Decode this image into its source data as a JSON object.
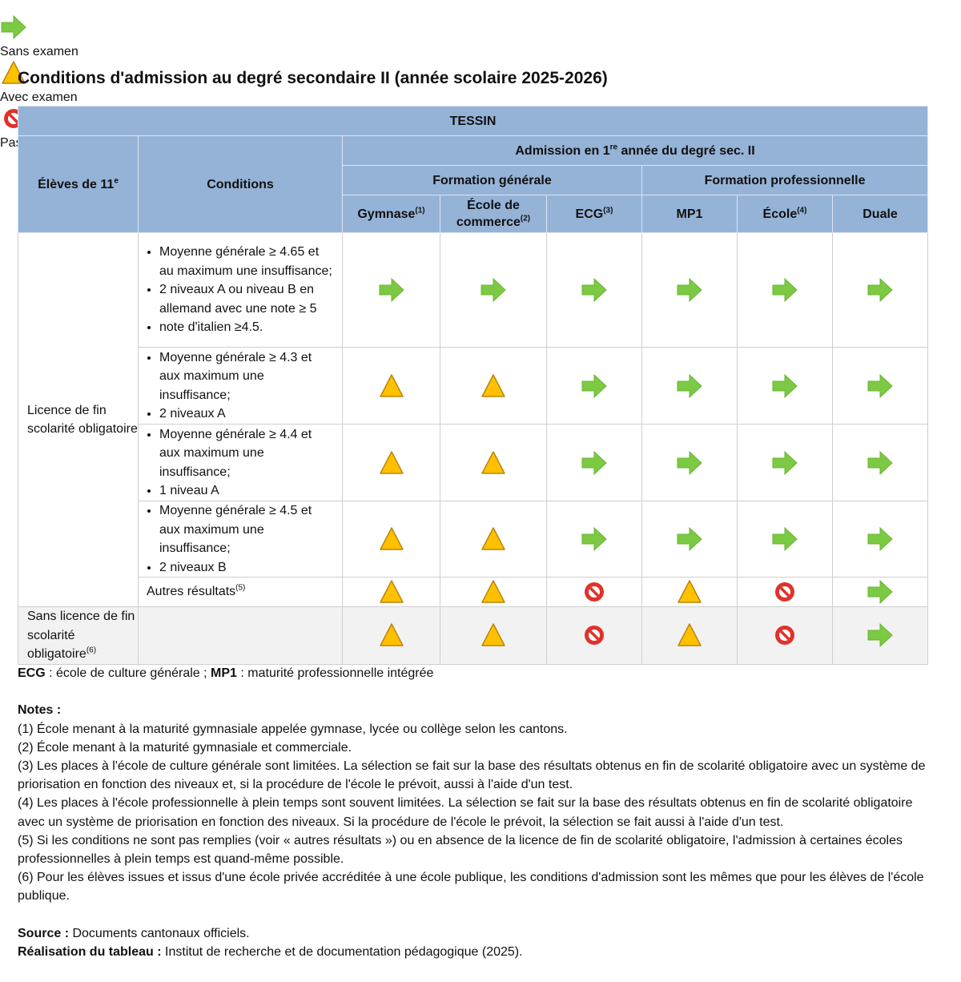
{
  "legend": [
    "Sans examen",
    "Avec examen",
    "Pas d'admission possible"
  ],
  "title": "Conditions d'admission au degré secondaire II (année scolaire 2025-2026)",
  "table": {
    "caption": "TESSIN",
    "student_header": [
      {
        "text": "Élèves de 11"
      },
      {
        "text": "e",
        "sup": true
      }
    ],
    "conditions_header": "Conditions",
    "admission_header": [
      {
        "text": "Admission en 1"
      },
      {
        "text": "re",
        "sup": true
      },
      {
        "text": " année du degré sec. II"
      }
    ],
    "groups": [
      {
        "label": "Formation générale",
        "columns": [
          [
            {
              "text": "Gymnase"
            },
            {
              "text": "(1)",
              "sup": true
            }
          ],
          [
            {
              "text": "École de commerce"
            },
            {
              "text": "(2)",
              "sup": true
            }
          ],
          [
            {
              "text": "ECG"
            },
            {
              "text": "(3)",
              "sup": true
            }
          ]
        ]
      },
      {
        "label": "Formation professionnelle",
        "columns": [
          "MP1",
          [
            {
              "text": "École"
            },
            {
              "text": "(4)",
              "sup": true
            }
          ],
          "Duale"
        ]
      }
    ],
    "row_groups": [
      {
        "label": "Licence de fin scolarité obligatoire",
        "rows": [
          {
            "conditions": {
              "bullets": [
                "Moyenne générale ≥ 4.65 et au maximum une insuffisance;",
                "2 niveaux A ou niveau B en allemand avec une note ≥ 5",
                "note d'italien ≥4.5."
              ]
            },
            "cells": [
              "Sans examen",
              "Sans examen",
              "Sans examen",
              "Sans examen",
              "Sans examen",
              "Sans examen"
            ]
          },
          {
            "conditions": {
              "bullets": [
                "Moyenne générale ≥ 4.3 et aux maximum une insuffisance;",
                "2 niveaux A"
              ]
            },
            "cells": [
              "Avec examen",
              "Avec examen",
              "Sans examen",
              "Sans examen",
              "Sans examen",
              "Sans examen"
            ]
          },
          {
            "conditions": {
              "bullets": [
                "Moyenne générale ≥ 4.4 et aux maximum une insuffisance;",
                "1 niveau A"
              ]
            },
            "cells": [
              "Avec examen",
              "Avec examen",
              "Sans examen",
              "Sans examen",
              "Sans examen",
              "Sans examen"
            ]
          },
          {
            "conditions": {
              "bullets": [
                "Moyenne générale ≥ 4.5 et aux maximum une insuffisance;",
                "2 niveaux B"
              ]
            },
            "cells": [
              "Avec examen",
              "Avec examen",
              "Sans examen",
              "Sans examen",
              "Sans examen",
              "Sans examen"
            ]
          },
          {
            "conditions": {
              "text": [
                {
                  "text": "Autres résultats"
                },
                {
                  "text": "(5)",
                  "sup": true
                }
              ]
            },
            "cells": [
              "Avec examen",
              "Avec examen",
              "Pas d'admission possible",
              "Avec examen",
              "Pas d'admission possible",
              "Sans examen"
            ]
          }
        ]
      },
      {
        "label": [
          {
            "text": "Sans licence de fin scolarité obligatoire"
          },
          {
            "text": "(6)",
            "sup": true
          }
        ],
        "rows": [
          {
            "cells": [
              "Avec examen",
              "Avec examen",
              "Pas d'admission possible",
              "Avec examen",
              "Pas d'admission possible",
              "Sans examen"
            ]
          }
        ]
      }
    ]
  },
  "abbreviations": [
    {
      "text": "ECG",
      "bold": true
    },
    {
      "text": " : école de culture générale ; "
    },
    {
      "text": "MP1",
      "bold": true
    },
    {
      "text": " : maturité professionnelle intégrée"
    }
  ],
  "notes_heading": "Notes :",
  "notes": [
    "(1) École menant à la maturité gymnasiale appelée gymnase, lycée ou collège selon les cantons.",
    "(2) École menant à la maturité gymnasiale et commerciale.",
    "(3) Les places à l'école de culture générale sont limitées. La sélection se fait sur la base des résultats obtenus en fin de scolarité obligatoire avec un système de priorisation en fonction des niveaux et, si la procédure de l'école le prévoit, aussi à l'aide d'un test.",
    "(4) Les places à l'école professionnelle à plein temps sont souvent limitées. La sélection se fait sur la base des résultats obtenus en fin de scolarité obligatoire avec un système de priorisation en fonction des niveaux. Si la procédure de l'école le prévoit, la sélection se fait aussi à l'aide d'un test.",
    "(5) Si les conditions ne sont pas remplies (voir « autres résultats ») ou en absence de la licence de fin de scolarité obligatoire, l'admission à certaines écoles professionnelles à plein temps est quand-même possible.",
    "(6) Pour les élèves issues et issus d'une école privée accréditée à une école publique, les conditions d'admission sont les mêmes que pour les élèves de l'école publique."
  ],
  "source": [
    {
      "text": "Source :",
      "bold": true
    },
    {
      "text": " Documents cantonaux officiels."
    }
  ],
  "credit": [
    {
      "text": "Réalisation du tableau :",
      "bold": true
    },
    {
      "text": " Institut de recherche et de documentation pédagogique (2025)."
    }
  ]
}
